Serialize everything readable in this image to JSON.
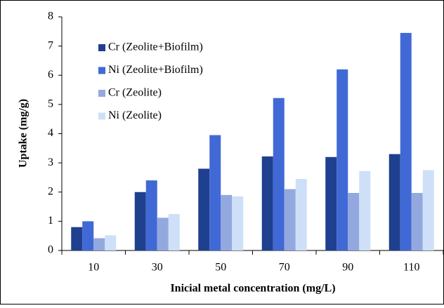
{
  "chart_data": {
    "type": "bar",
    "categories": [
      "10",
      "30",
      "50",
      "70",
      "90",
      "110"
    ],
    "series": [
      {
        "name": "Cr (Zeolite+Biofilm)",
        "color": "#1f3f8f",
        "values": [
          0.8,
          2.0,
          2.8,
          3.22,
          3.2,
          3.3
        ]
      },
      {
        "name": "Ni (Zeolite+Biofilm)",
        "color": "#4169d6",
        "values": [
          1.0,
          2.4,
          3.95,
          5.22,
          6.2,
          7.45
        ]
      },
      {
        "name": "Cr (Zeolite)",
        "color": "#94a8e0",
        "values": [
          0.42,
          1.12,
          1.9,
          2.1,
          1.97,
          1.97
        ]
      },
      {
        "name": "Ni (Zeolite)",
        "color": "#cde0f7",
        "values": [
          0.52,
          1.25,
          1.85,
          2.45,
          2.72,
          2.75
        ]
      }
    ],
    "ylim": [
      0,
      8
    ],
    "yticks": [
      0,
      1,
      2,
      3,
      4,
      5,
      6,
      7,
      8
    ],
    "y_label": "Uptake (mg/g)",
    "x_label": "Inicial metal concentration (mg/L)",
    "legend": "upper left",
    "grid": false
  }
}
